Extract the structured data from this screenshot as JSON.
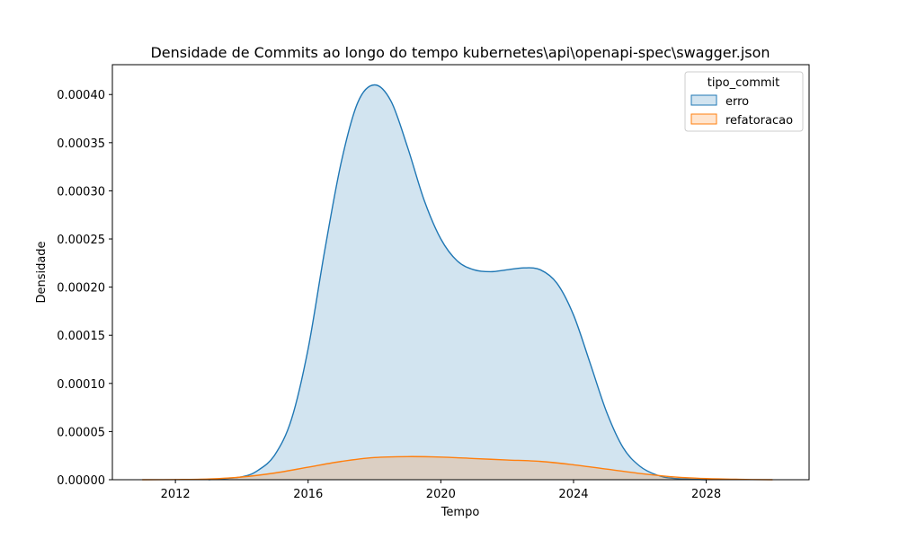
{
  "chart_data": {
    "type": "area",
    "title": "Densidade de Commits ao longo do tempo kubernetes\\api\\openapi-spec\\swagger.json",
    "xlabel": "Tempo",
    "ylabel": "Densidade",
    "xlim": [
      2010.1,
      2031.1
    ],
    "ylim": [
      0,
      0.000431
    ],
    "x_ticks": [
      2012,
      2016,
      2020,
      2024,
      2028
    ],
    "x_tick_labels": [
      "2012",
      "2016",
      "2020",
      "2024",
      "2028"
    ],
    "y_ticks": [
      0,
      5e-05,
      0.0001,
      0.00015,
      0.0002,
      0.00025,
      0.0003,
      0.00035,
      0.0004
    ],
    "y_tick_labels": [
      "0.00000",
      "0.00005",
      "0.00010",
      "0.00015",
      "0.00020",
      "0.00025",
      "0.00030",
      "0.00035",
      "0.00040"
    ],
    "legend": {
      "title": "tipo_commit",
      "placement": "top-right"
    },
    "grid": false,
    "series": [
      {
        "name": "erro",
        "color": "#1f77b4",
        "points": [
          [
            2013.0,
            0.0
          ],
          [
            2014.0,
            3e-06
          ],
          [
            2014.5,
            1e-05
          ],
          [
            2015.0,
            2.6e-05
          ],
          [
            2015.5,
            6.3e-05
          ],
          [
            2016.0,
            0.000136
          ],
          [
            2016.5,
            0.000238
          ],
          [
            2017.0,
            0.00033
          ],
          [
            2017.5,
            0.000392
          ],
          [
            2018.0,
            0.00041
          ],
          [
            2018.5,
            0.000393
          ],
          [
            2019.0,
            0.000345
          ],
          [
            2019.5,
            0.00029
          ],
          [
            2020.0,
            0.00025
          ],
          [
            2020.5,
            0.000227
          ],
          [
            2021.0,
            0.000218
          ],
          [
            2021.5,
            0.000216
          ],
          [
            2022.0,
            0.000218
          ],
          [
            2022.5,
            0.00022
          ],
          [
            2023.0,
            0.000218
          ],
          [
            2023.5,
            0.000204
          ],
          [
            2024.0,
            0.000171
          ],
          [
            2024.5,
            0.000121
          ],
          [
            2025.0,
            7e-05
          ],
          [
            2025.5,
            3.3e-05
          ],
          [
            2026.0,
            1.4e-05
          ],
          [
            2026.5,
            5e-06
          ],
          [
            2027.0,
            1.5e-06
          ],
          [
            2028.0,
            0.0
          ]
        ]
      },
      {
        "name": "refatoracao",
        "color": "#ff7f0e",
        "points": [
          [
            2011.0,
            0.0
          ],
          [
            2012.0,
            2e-07
          ],
          [
            2013.0,
            8e-07
          ],
          [
            2014.0,
            2.8e-06
          ],
          [
            2015.0,
            7e-06
          ],
          [
            2016.0,
            1.3e-05
          ],
          [
            2017.0,
            1.9e-05
          ],
          [
            2018.0,
            2.3e-05
          ],
          [
            2019.0,
            2.4e-05
          ],
          [
            2020.0,
            2.35e-05
          ],
          [
            2021.0,
            2.2e-05
          ],
          [
            2022.0,
            2.05e-05
          ],
          [
            2023.0,
            1.9e-05
          ],
          [
            2024.0,
            1.55e-05
          ],
          [
            2025.0,
            1.1e-05
          ],
          [
            2026.0,
            6.5e-06
          ],
          [
            2027.0,
            3e-06
          ],
          [
            2028.0,
            1.2e-06
          ],
          [
            2029.0,
            4e-07
          ],
          [
            2030.0,
            0.0
          ]
        ]
      }
    ]
  }
}
